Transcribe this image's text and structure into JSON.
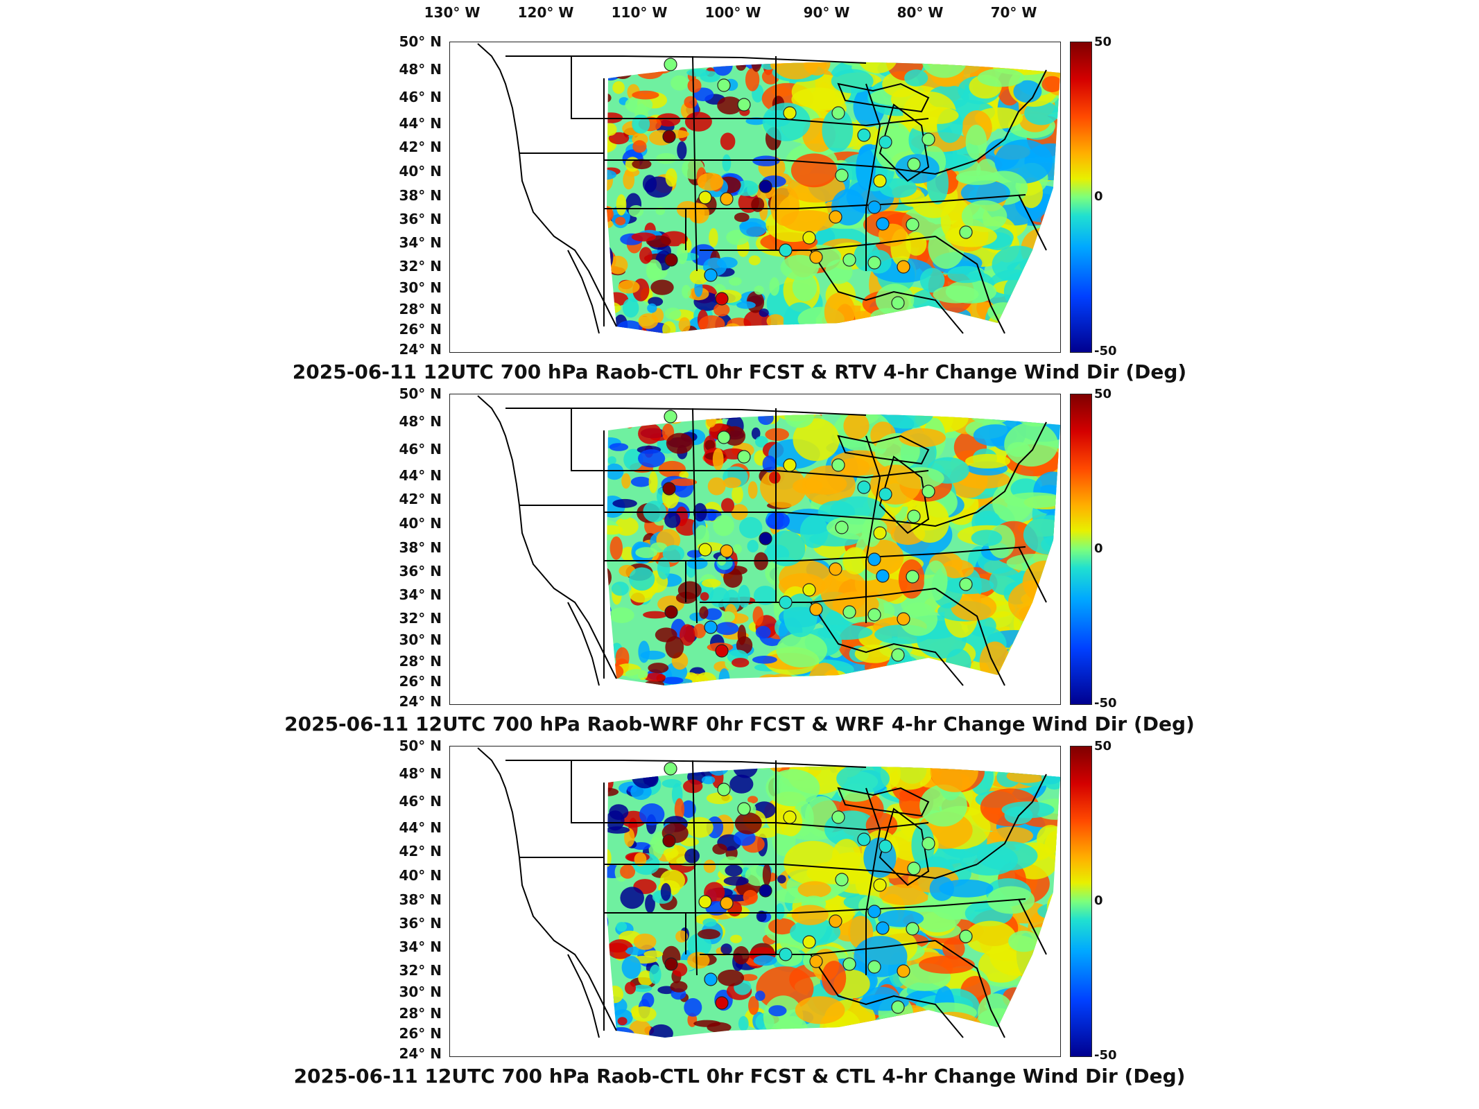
{
  "lon_labels": [
    "130° W",
    "120° W",
    "110° W",
    "100° W",
    "90° W",
    "80° W",
    "70° W"
  ],
  "lat_labels": [
    "50° N",
    "48° N",
    "46° N",
    "44° N",
    "42° N",
    "40° N",
    "38° N",
    "36° N",
    "34° N",
    "32° N",
    "30° N",
    "28° N",
    "26° N",
    "24° N"
  ],
  "colorbar": {
    "max_label": "50",
    "mid_label": "0",
    "min_label": "-50",
    "colors": [
      "#7f0000",
      "#d40000",
      "#ff4a00",
      "#ffb000",
      "#e8f000",
      "#7cff7c",
      "#20e0d0",
      "#00a8ff",
      "#0040ff",
      "#00008f"
    ]
  },
  "panels": [
    {
      "title": "2025-06-11 12UTC 700 hPa Raob-CTL 0hr FCST & RTV 4-hr Change Wind Dir (Deg)"
    },
    {
      "title": "2025-06-11 12UTC 700 hPa Raob-WRF 0hr FCST & WRF 4-hr Change Wind Dir (Deg)"
    },
    {
      "title": "2025-06-11 12UTC 700 hPa Raob-CTL 0hr FCST & CTL 4-hr Change Wind Dir (Deg)"
    }
  ]
}
